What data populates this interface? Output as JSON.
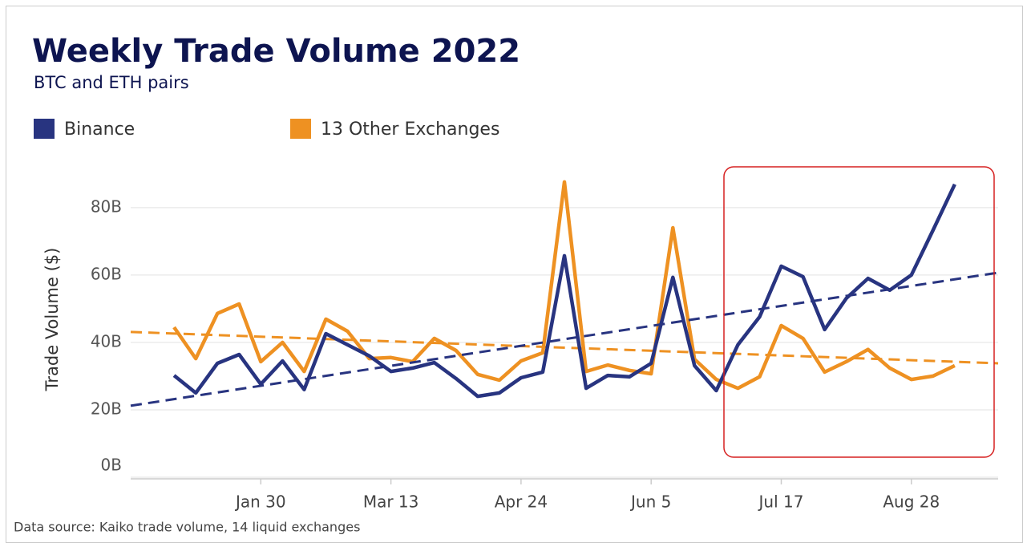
{
  "chart_data": {
    "type": "line",
    "title": "Weekly Trade Volume 2022",
    "subtitle": "BTC and ETH pairs",
    "y_label": "Trade Volume ($)",
    "footnote": "Data source: Kaiko trade volume, 14 liquid exchanges",
    "categories": [
      null,
      null,
      null,
      null,
      "Jan 30",
      null,
      null,
      null,
      null,
      null,
      "Mar 13",
      null,
      null,
      null,
      null,
      null,
      "Apr 24",
      null,
      null,
      null,
      null,
      null,
      "Jun 5",
      null,
      null,
      null,
      null,
      null,
      "Jul 17",
      null,
      null,
      null,
      null,
      null,
      "Aug 28",
      null,
      null
    ],
    "series": [
      {
        "name": "Binance",
        "color": "#283480",
        "values": [
          30.2,
          25,
          33.8,
          36.4,
          27.6,
          34.5,
          26,
          42.6,
          39.3,
          36,
          31.4,
          32.4,
          34,
          29.3,
          24,
          25,
          29.5,
          31.2,
          65.7,
          26.4,
          30.2,
          29.8,
          33.8,
          59.3,
          33.1,
          25.7,
          39.3,
          47.6,
          62.6,
          59.5,
          43.8,
          53.1,
          59,
          55.5,
          60,
          73.3,
          86.9
        ],
        "trend": [
          21.2,
          60.7
        ]
      },
      {
        "name": "13 Other Exchanges",
        "color": "#ee9122",
        "values": [
          44.5,
          35.2,
          48.6,
          51.4,
          34.3,
          40,
          31.4,
          46.9,
          43.3,
          35.2,
          35.5,
          34.3,
          41.2,
          37.6,
          30.5,
          28.8,
          34.5,
          36.9,
          87.6,
          31.4,
          33.3,
          31.7,
          30.7,
          74,
          35,
          29,
          26.4,
          29.8,
          45,
          41.2,
          31.2,
          34.3,
          37.9,
          32.4,
          29,
          30,
          33.1
        ],
        "trend": [
          43.1,
          33.8
        ]
      }
    ],
    "ylim": [
      0,
      94
    ],
    "yticks": [
      {
        "value": 0,
        "label": "0B"
      },
      {
        "value": 20,
        "label": "20B"
      },
      {
        "value": 40,
        "label": "40B"
      },
      {
        "value": 60,
        "label": "60B"
      },
      {
        "value": 80,
        "label": "80B"
      }
    ],
    "grid": true,
    "legend": "top-left"
  }
}
